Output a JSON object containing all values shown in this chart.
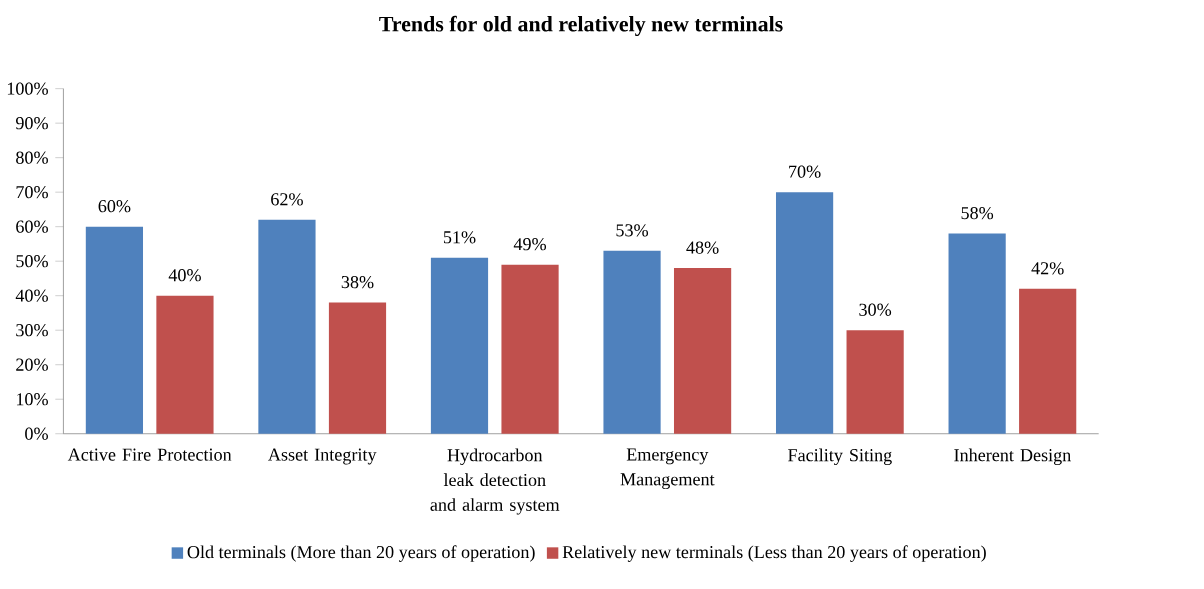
{
  "chart_data": {
    "type": "bar",
    "title": "Trends for old and relatively new terminals",
    "categories": [
      "Active Fire Protection",
      "Asset Integrity",
      "Hydrocarbon leak detection and alarm system",
      "Emergency Management",
      "Facility Siting",
      "Inherent Design"
    ],
    "series": [
      {
        "name": "Old terminals (More than 20 years of operation)",
        "color": "#4f81bd",
        "values": [
          60,
          62,
          51,
          53,
          70,
          58
        ],
        "value_labels": [
          "60%",
          "62%",
          "51%",
          "53%",
          "70%",
          "58%"
        ]
      },
      {
        "name": "Relatively new terminals (Less than 20 years of operation)",
        "color": "#c0504d",
        "values": [
          40,
          38,
          49,
          48,
          30,
          42
        ],
        "value_labels": [
          "40%",
          "38%",
          "49%",
          "48%",
          "30%",
          "42%"
        ]
      }
    ],
    "ylim": [
      0,
      100
    ],
    "yticks": [
      {
        "value": 0,
        "label": "0%"
      },
      {
        "value": 10,
        "label": "10%"
      },
      {
        "value": 20,
        "label": "20%"
      },
      {
        "value": 30,
        "label": "30%"
      },
      {
        "value": 40,
        "label": "40%"
      },
      {
        "value": 50,
        "label": "50%"
      },
      {
        "value": 60,
        "label": "60%"
      },
      {
        "value": 70,
        "label": "70%"
      },
      {
        "value": 80,
        "label": "80%"
      },
      {
        "value": 90,
        "label": "90%"
      },
      {
        "value": 100,
        "label": "100%"
      }
    ],
    "grid": false,
    "legend": "bottom"
  }
}
